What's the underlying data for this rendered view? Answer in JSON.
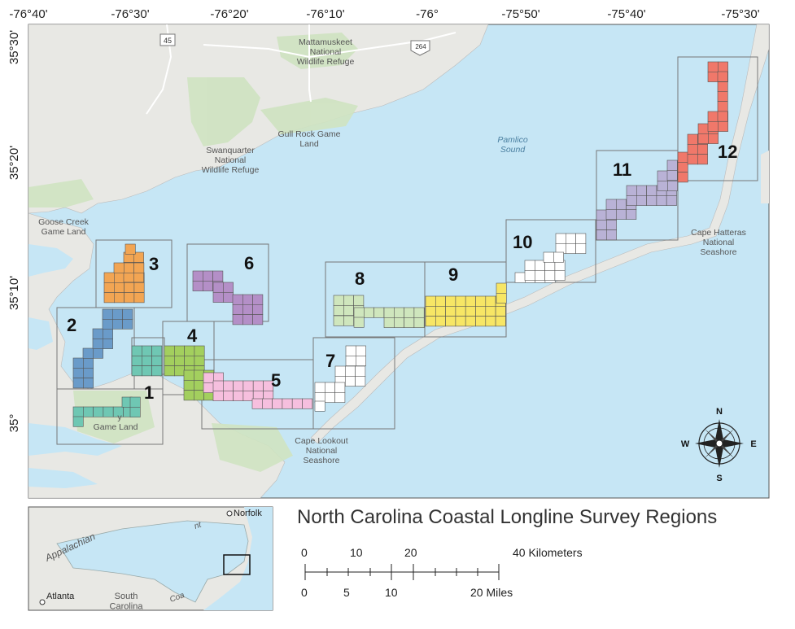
{
  "title": "North Carolina Coastal Longline Survey Regions",
  "colors": {
    "water": "#c6e6f5",
    "land": "#e8e8e4",
    "park": "#cfe3c1",
    "r1": "#6fc7b3",
    "r2": "#6a9bc9",
    "r3": "#f2a553",
    "r4": "#a3cf5e",
    "r5": "#f6bfde",
    "r6": "#b48fc7",
    "r7": "#ffffff",
    "r8": "#cfe6bd",
    "r9": "#f7e665",
    "r10": "#ffffff",
    "r11": "#b9b2d6",
    "r12": "#f0786a"
  },
  "axes": {
    "top_ticks": [
      "-76°40'",
      "-76°30'",
      "-76°20'",
      "-76°10'",
      "-76°",
      "-75°50'",
      "-75°40'",
      "-75°30'"
    ],
    "left_ticks": [
      "35°30'",
      "35°20'",
      "35°10'",
      "35°"
    ]
  },
  "regions": [
    {
      "id": "r1",
      "label": "1"
    },
    {
      "id": "r2",
      "label": "2"
    },
    {
      "id": "r3",
      "label": "3"
    },
    {
      "id": "r4",
      "label": "4"
    },
    {
      "id": "r5",
      "label": "5"
    },
    {
      "id": "r6",
      "label": "6"
    },
    {
      "id": "r7",
      "label": "7"
    },
    {
      "id": "r8",
      "label": "8"
    },
    {
      "id": "r9",
      "label": "9"
    },
    {
      "id": "r10",
      "label": "10"
    },
    {
      "id": "r11",
      "label": "11"
    },
    {
      "id": "r12",
      "label": "12"
    }
  ],
  "place_labels": {
    "mattamuskeet": "Mattamuskeet\nNational\nWildlife Refuge",
    "gull_rock": "Gull Rock Game\nLand",
    "swanquarter": "Swanquarter\nNational\nWildlife Refuge",
    "pamlico": "Pamlico\nSound",
    "goose_creek": "Goose Creek\nGame Land",
    "cape_hatteras": "Cape Hatteras\nNational\nSeashore",
    "cape_lookout": "Cape Lookout\nNational\nSeashore",
    "game_land_1": "Game Land",
    "game_land_1_top": "y"
  },
  "shields": {
    "us45": "45",
    "us264": "264"
  },
  "compass": {
    "n": "N",
    "s": "S",
    "e": "E",
    "w": "W"
  },
  "inset": {
    "appalachian": "Appalachian",
    "norfolk": "Norfolk",
    "atlanta": "Atlanta",
    "south_carolina": "South\nCarolina",
    "coast": "Coa",
    "coast_small": "nt"
  },
  "scale": {
    "km_ticks": [
      "0",
      "10",
      "20",
      "40 Kilometers"
    ],
    "mi_ticks": [
      "0",
      "5",
      "10",
      "20 Miles"
    ]
  }
}
